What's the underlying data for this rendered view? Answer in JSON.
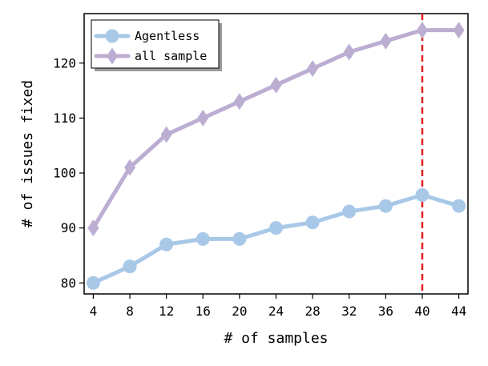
{
  "chart_data": {
    "type": "line",
    "xlabel": "# of samples",
    "ylabel": "# of issues fixed",
    "x": [
      4,
      8,
      12,
      16,
      20,
      24,
      28,
      32,
      36,
      40,
      44
    ],
    "xticks": [
      "4",
      "8",
      "12",
      "16",
      "20",
      "24",
      "28",
      "32",
      "36",
      "40",
      "44"
    ],
    "yticks": [
      "80",
      "90",
      "100",
      "110",
      "120"
    ],
    "xlim": [
      3,
      45
    ],
    "ylim": [
      78,
      129
    ],
    "grid": false,
    "legend_position": "top-left",
    "series": [
      {
        "name": "Agentless",
        "values": [
          80,
          83,
          87,
          88,
          88,
          90,
          91,
          93,
          94,
          96,
          94
        ],
        "color": "#a8c8e8",
        "marker": "circle"
      },
      {
        "name": "all sample",
        "values": [
          90,
          101,
          107,
          110,
          113,
          116,
          119,
          122,
          124,
          126,
          126
        ],
        "color": "#bcaed2",
        "marker": "diamond"
      }
    ],
    "reference_line": {
      "axis": "x",
      "value": 40,
      "color": "#e02020",
      "style": "dashed"
    }
  }
}
